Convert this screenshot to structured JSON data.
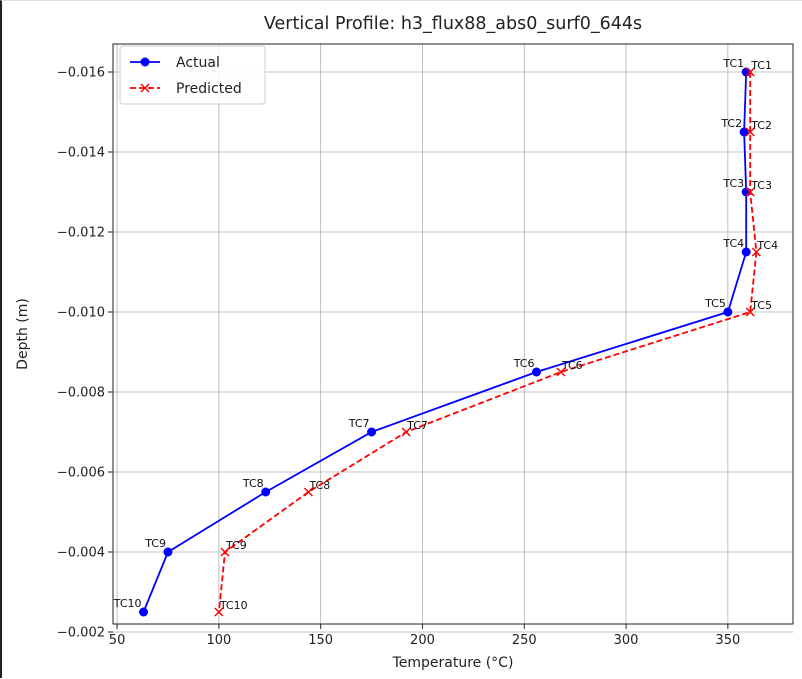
{
  "chart_data": {
    "type": "line",
    "title": "Vertical Profile: h3_flux88_abs0_surf0_644s",
    "xlabel": "Temperature (°C)",
    "ylabel": "Depth (m)",
    "xlim": [
      48,
      382
    ],
    "ylim": [
      -0.0022,
      -0.0167
    ],
    "y_inverted": true,
    "grid": true,
    "legend_position": "top-left",
    "x_ticks": [
      50,
      100,
      150,
      200,
      250,
      300,
      350
    ],
    "y_ticks": [
      -0.016,
      -0.014,
      -0.012,
      -0.01,
      -0.008,
      -0.006,
      -0.004,
      -0.002
    ],
    "y_tick_labels": [
      "−0.016",
      "−0.014",
      "−0.012",
      "−0.010",
      "−0.008",
      "−0.006",
      "−0.004",
      "−0.002"
    ],
    "point_labels": [
      "TC1",
      "TC2",
      "TC3",
      "TC4",
      "TC5",
      "TC6",
      "TC7",
      "TC8",
      "TC9",
      "TC10"
    ],
    "series": [
      {
        "name": "Actual",
        "color": "#0000ff",
        "line_style": "solid",
        "marker": "circle",
        "x": [
          359,
          358,
          359,
          359,
          350,
          256,
          175,
          123,
          75,
          63
        ],
        "y": [
          -0.016,
          -0.0145,
          -0.013,
          -0.0115,
          -0.01,
          -0.0085,
          -0.007,
          -0.0055,
          -0.004,
          -0.0025
        ]
      },
      {
        "name": "Predicted",
        "color": "#ff0000",
        "line_style": "dashed",
        "marker": "x",
        "x": [
          361,
          361,
          361,
          364,
          361,
          268,
          192,
          144,
          103,
          100
        ],
        "y": [
          -0.016,
          -0.0145,
          -0.013,
          -0.0115,
          -0.01,
          -0.0085,
          -0.007,
          -0.0055,
          -0.004,
          -0.0025
        ]
      }
    ]
  }
}
